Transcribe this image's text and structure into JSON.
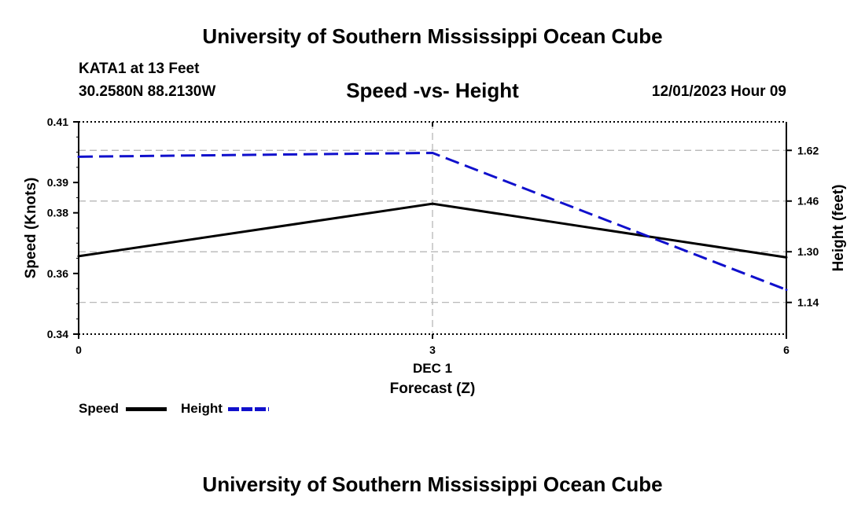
{
  "header": {
    "main_title": "University of Southern Mississippi Ocean Cube",
    "station": "KATA1 at 13 Feet",
    "coords": "30.2580N  88.2130W",
    "chart_title": "Speed -vs- Height",
    "datetime": "12/01/2023 Hour 09"
  },
  "footer": {
    "main_title": "University of Southern Mississippi Ocean Cube"
  },
  "legend": {
    "speed_label": "Speed",
    "height_label": "Height"
  },
  "colors": {
    "speed": "#000000",
    "height": "#1010cc",
    "grid": "#b0b0b0"
  },
  "chart_data": {
    "type": "line",
    "title": "Speed -vs- Height",
    "xlabel": "Forecast (Z)",
    "x_sublabel": "DEC 1",
    "x": [
      0,
      3,
      6
    ],
    "x_ticks": [
      "0",
      "3",
      "6"
    ],
    "xlim": [
      0,
      6
    ],
    "ylabel_left": "Speed (Knots)",
    "ylabel_right": "Height (feet)",
    "ylim_left": [
      0.34,
      0.41
    ],
    "yticks_left": [
      "0.34",
      "0.36",
      "0.38",
      "0.39",
      "0.41"
    ],
    "ylim_right": [
      1.04,
      1.71
    ],
    "yticks_right": [
      "1.14",
      "1.30",
      "1.46",
      "1.62"
    ],
    "grid": true,
    "series": [
      {
        "name": "Speed",
        "axis": "left",
        "style": "solid",
        "values": [
          0.3657,
          0.383,
          0.3653
        ]
      },
      {
        "name": "Height",
        "axis": "right",
        "style": "dashed",
        "values": [
          1.6,
          1.612,
          1.18
        ]
      }
    ]
  }
}
